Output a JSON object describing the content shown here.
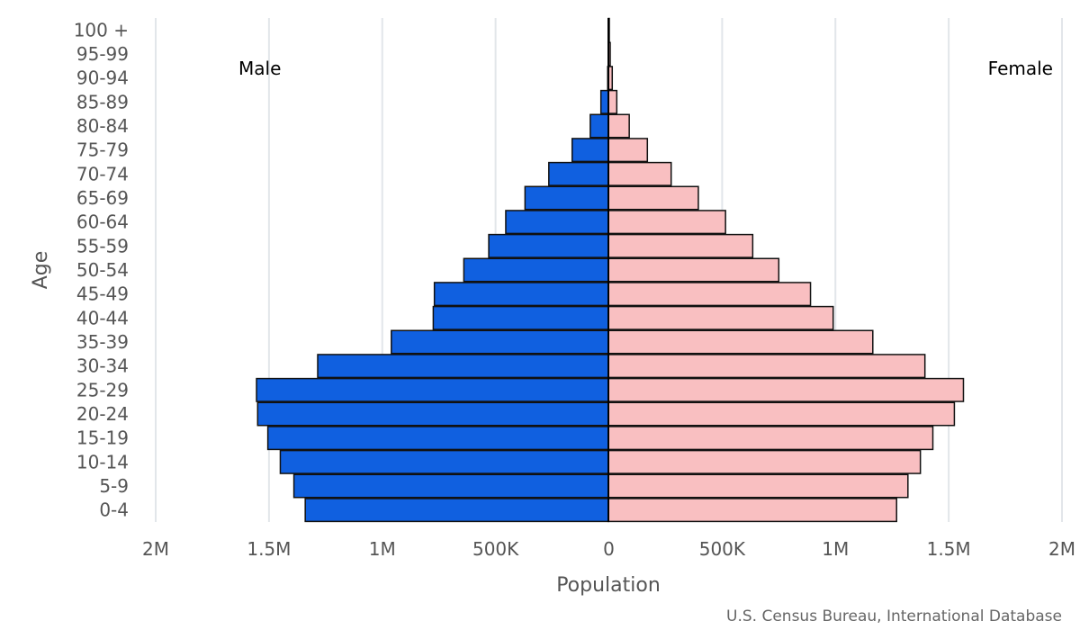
{
  "chart_data": {
    "type": "bar",
    "orientation": "horizontal-pyramid",
    "ylabel": "Age",
    "xlabel": "Population",
    "male_label": "Male",
    "female_label": "Female",
    "source": "U.S. Census Bureau, International Database",
    "xlim": [
      -2000000,
      2000000
    ],
    "x_ticks": [
      -2000000,
      -1500000,
      -1000000,
      -500000,
      0,
      500000,
      1000000,
      1500000,
      2000000
    ],
    "x_tick_labels": [
      "2M",
      "1.5M",
      "1M",
      "500K",
      "0",
      "500K",
      "1M",
      "1.5M",
      "2M"
    ],
    "categories": [
      "100 +",
      "95-99",
      "90-94",
      "85-89",
      "80-84",
      "75-79",
      "70-74",
      "65-69",
      "60-64",
      "55-59",
      "50-54",
      "45-49",
      "40-44",
      "35-39",
      "30-34",
      "25-29",
      "20-24",
      "15-19",
      "10-14",
      "5-9",
      "0-4"
    ],
    "series": [
      {
        "name": "Male",
        "color": "#1060e0",
        "values": [
          1000,
          3000,
          5000,
          35000,
          82000,
          162000,
          265000,
          370000,
          455000,
          530000,
          640000,
          770000,
          775000,
          960000,
          1285000,
          1555000,
          1550000,
          1505000,
          1450000,
          1390000,
          1340000
        ]
      },
      {
        "name": "Female",
        "color": "#f9bfc1",
        "values": [
          2000,
          6000,
          15000,
          35000,
          90000,
          170000,
          275000,
          395000,
          515000,
          635000,
          750000,
          890000,
          990000,
          1165000,
          1395000,
          1565000,
          1525000,
          1430000,
          1375000,
          1320000,
          1270000
        ]
      }
    ]
  }
}
